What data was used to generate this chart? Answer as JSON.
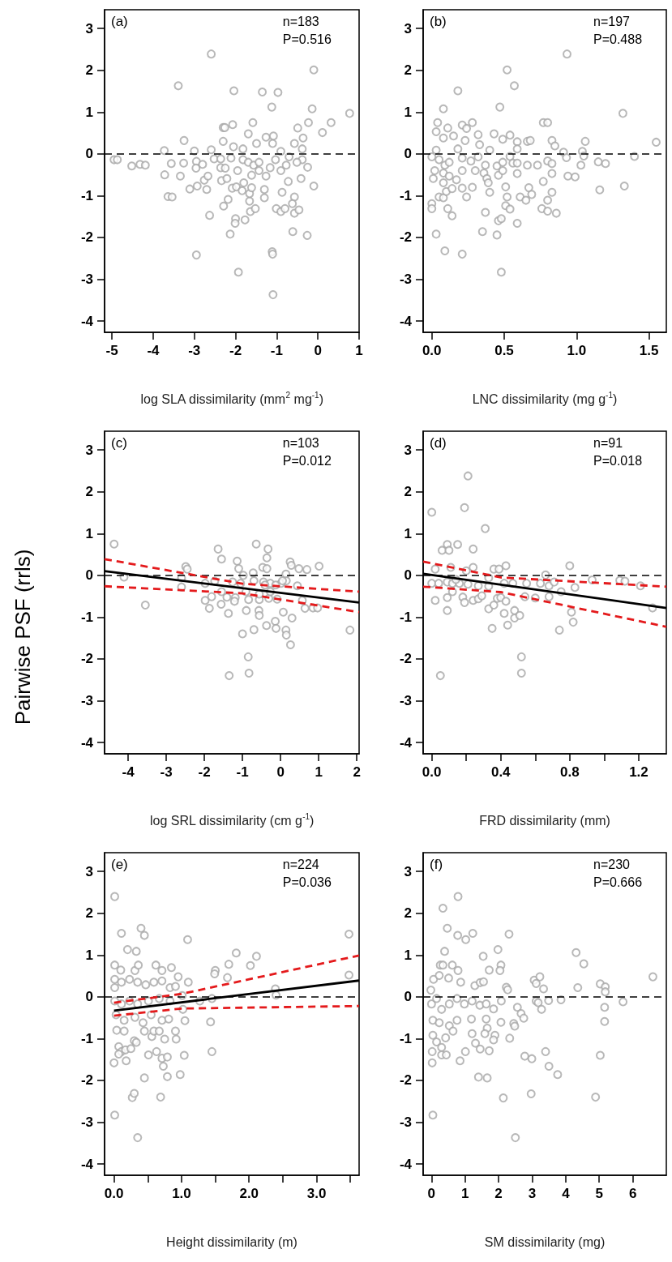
{
  "chart_data": [
    {
      "type": "scatter",
      "xlabel": "log SLA dissimilarity (mm$^{2}$ mg$^{-1}$)",
      "annotations": [
        "(a)",
        "n=183",
        "P=0.516"
      ],
      "marker": "circle",
      "xlim": [
        -5.18,
        1
      ],
      "xticks": [
        -5,
        -4,
        -3,
        -2,
        -1,
        0,
        1
      ],
      "ylim": [
        -4.27,
        3.45
      ],
      "yticks": [
        -4,
        -3,
        -2,
        -1,
        0,
        1,
        2,
        3
      ],
      "ref_lines": [
        {
          "axis": "y",
          "value": 0,
          "color": "#000000",
          "line_style": "dashed"
        }
      ],
      "series": [
        {
          "color": "#a6a6a6",
          "x": [
            -2.59,
            -0.1,
            -3.39,
            -2.04,
            -1.35,
            -0.97,
            -1.12,
            -0.14,
            0.77,
            0.32,
            -0.23,
            -1.58,
            0.11,
            -0.49,
            -2.07,
            -2.3,
            -2.26,
            -3.25,
            -3.73,
            -3.0,
            -2.59,
            -2.3,
            -2.05,
            -1.69,
            -1.26,
            -1.08,
            -0.36,
            -0.57,
            -1.49,
            -4.95,
            -4.87,
            -4.52,
            -4.32,
            -4.19,
            -3.56,
            -3.26,
            -3.72,
            -3.34,
            -3.64,
            -3.54,
            -3.11,
            -2.93,
            -2.95,
            -2.96,
            -2.8,
            -2.7,
            -2.76,
            -2.67,
            -2.52,
            -2.36,
            -2.36,
            -2.25,
            -2.34,
            -2.21,
            -2.11,
            -2.29,
            -2.18,
            -2.63,
            -2.08,
            -1.98,
            -1.84,
            -2.0,
            -2.01,
            -2.13,
            -1.77,
            -2.95,
            -1.93,
            -1.64,
            -1.52,
            -1.66,
            -1.66,
            -1.61,
            -1.8,
            -1.95,
            -1.82,
            -1.69,
            -1.56,
            -1.43,
            -1.61,
            -1.43,
            -1.3,
            -1.26,
            -1.3,
            -1.16,
            -1.11,
            -1.1,
            -1.09,
            -1.03,
            -0.9,
            -0.87,
            -1.01,
            -0.9,
            -0.8,
            -0.72,
            -0.57,
            -0.62,
            -0.57,
            -0.46,
            -0.61,
            -0.26,
            -0.1,
            -0.25,
            -0.41,
            -0.38,
            -0.51,
            -0.7,
            -0.77,
            -0.9,
            -0.38,
            -1.1,
            -1.82
          ],
          "values": [
            2.39,
            2.01,
            1.63,
            1.51,
            1.48,
            1.47,
            1.12,
            1.08,
            0.97,
            0.75,
            0.75,
            0.75,
            0.51,
            0.62,
            0.7,
            0.63,
            0.63,
            0.32,
            0.08,
            0.07,
            0.1,
            0.3,
            0.17,
            0.48,
            0.4,
            0.43,
            0.38,
            0.25,
            0.25,
            -0.14,
            -0.14,
            -0.29,
            -0.25,
            -0.27,
            -0.23,
            -0.22,
            -0.5,
            -0.53,
            -1.02,
            -1.03,
            -0.84,
            -0.77,
            -0.18,
            -0.34,
            -0.25,
            -0.85,
            -0.63,
            -0.53,
            -0.12,
            -0.12,
            -0.33,
            -0.34,
            -0.64,
            -0.59,
            -0.1,
            -1.25,
            -1.09,
            -1.47,
            -0.82,
            -0.79,
            -0.88,
            -1.55,
            -1.66,
            -1.92,
            -1.58,
            -2.42,
            -2.83,
            -1.38,
            -1.31,
            -1.13,
            -0.95,
            -0.81,
            -0.69,
            -0.4,
            -0.14,
            -0.2,
            -0.27,
            -0.2,
            -0.51,
            -0.4,
            -0.85,
            -0.53,
            -1.05,
            -0.33,
            -2.34,
            -2.4,
            -3.37,
            -0.14,
            -0.4,
            -0.92,
            -1.31,
            -1.38,
            -1.31,
            -0.66,
            -1.03,
            -1.19,
            -1.42,
            -1.34,
            -1.86,
            -1.95,
            -0.77,
            -0.32,
            -0.59,
            -0.14,
            -0.2,
            -0.07,
            -0.27,
            0.06,
            0.12,
            0.25,
            0.12
          ]
        }
      ]
    },
    {
      "type": "scatter",
      "xlabel": "LNC dissimilarity (mg g$^{-1}$)",
      "annotations": [
        "(b)",
        "n=197",
        "P=0.488"
      ],
      "marker": "circle",
      "xlim": [
        -0.06,
        1.62
      ],
      "xticks": [
        {
          "value": 0,
          "label": "0.0"
        },
        0.5,
        {
          "value": 1,
          "label": "1.0"
        },
        1.5
      ],
      "ylim": [
        -4.27,
        3.45
      ],
      "yticks": [
        -4,
        -3,
        -2,
        -1,
        0,
        1,
        2,
        3
      ],
      "ref_lines": [
        {
          "axis": "y",
          "value": 0,
          "color": "#000000",
          "line_style": "dashed"
        }
      ],
      "series": [
        {
          "color": "#a6a6a6",
          "x": [
            0.934,
            0.52,
            0.57,
            0.18,
            0.47,
            0.08,
            1.32,
            0.04,
            0.03,
            0.11,
            0.21,
            0.28,
            0.24,
            0.77,
            0.8,
            0.43,
            0.54,
            0.49,
            0.15,
            0.08,
            0.32,
            0.23,
            0.33,
            0.59,
            0.66,
            0.68,
            0.83,
            1.06,
            1.55,
            0.03,
            0.18,
            0.4,
            0.59,
            0.85,
            0.91,
            1.04,
            0.0,
            0.05,
            0.09,
            0.12,
            0.21,
            0.27,
            0.32,
            0.37,
            0.45,
            0.49,
            0.54,
            0.56,
            0.59,
            0.66,
            0.73,
            0.8,
            0.83,
            0.93,
            1.05,
            1.03,
            1.15,
            1.2,
            1.4,
            0.01,
            0.02,
            0.08,
            0.12,
            0.0,
            0.0,
            0.05,
            0.08,
            0.03,
            0.09,
            0.21,
            0.11,
            0.14,
            0.1,
            0.08,
            0.17,
            0.14,
            0.21,
            0.21,
            0.28,
            0.24,
            0.3,
            0.36,
            0.38,
            0.4,
            0.39,
            0.46,
            0.49,
            0.37,
            0.35,
            0.45,
            0.46,
            0.48,
            0.48,
            0.51,
            0.52,
            0.51,
            0.54,
            0.59,
            0.59,
            0.61,
            0.65,
            0.67,
            0.69,
            0.77,
            0.76,
            0.8,
            0.8,
            0.83,
            0.83,
            0.86,
            0.94,
            0.99,
            1.16,
            1.33
          ],
          "values": [
            2.39,
            2.01,
            1.63,
            1.51,
            1.12,
            1.08,
            0.97,
            0.75,
            0.53,
            0.62,
            0.69,
            0.75,
            0.61,
            0.75,
            0.75,
            0.48,
            0.45,
            0.35,
            0.43,
            0.38,
            0.46,
            0.32,
            0.22,
            0.29,
            0.3,
            0.32,
            0.32,
            0.3,
            0.28,
            0.09,
            0.12,
            0.09,
            0.12,
            0.19,
            0.04,
            0.06,
            -0.07,
            -0.14,
            -0.27,
            -0.2,
            -0.1,
            -0.17,
            -0.07,
            -0.27,
            -0.29,
            -0.2,
            -0.06,
            -0.22,
            -0.22,
            -0.27,
            -0.27,
            -0.17,
            -0.23,
            -0.09,
            -0.05,
            -0.27,
            -0.19,
            -0.23,
            -0.06,
            -0.59,
            -0.4,
            -0.46,
            -0.53,
            -1.19,
            -1.31,
            -1.03,
            -1.05,
            -1.92,
            -2.32,
            -2.4,
            -1.31,
            -1.48,
            -0.9,
            -0.69,
            -0.62,
            -0.83,
            -0.4,
            -0.82,
            -0.8,
            -1.03,
            -0.4,
            -0.46,
            -0.59,
            -0.92,
            -0.69,
            -0.51,
            -0.4,
            -1.4,
            -1.86,
            -1.94,
            -1.6,
            -1.55,
            -2.83,
            -0.79,
            -1.03,
            -1.24,
            -1.32,
            -0.47,
            -1.66,
            -1.03,
            -1.11,
            -0.81,
            -0.97,
            -0.66,
            -1.31,
            -1.37,
            -1.11,
            -0.47,
            -0.92,
            -1.42,
            -0.53,
            -0.55,
            -0.86,
            -0.77
          ]
        }
      ]
    },
    {
      "type": "scatter",
      "xlabel": "log SRL dissimilarity (cm g$^{-1}$)",
      "ylabel": "Pairwise PSF (rrls)",
      "annotations": [
        "(c)",
        "n=103",
        "P=0.012"
      ],
      "marker": "circle",
      "xlim": [
        -4.62,
        2.06
      ],
      "xticks": [
        -4,
        -3,
        -2,
        -1,
        0,
        1,
        2
      ],
      "ylim": [
        -4.27,
        3.45
      ],
      "yticks": [
        -4,
        -3,
        -2,
        -1,
        0,
        1,
        2,
        3
      ],
      "ref_lines": [
        {
          "axis": "y",
          "value": 0,
          "color": "#000000",
          "line_style": "dashed"
        }
      ],
      "series": [
        {
          "color": "#a6a6a6",
          "x": [
            -4.37,
            -4.11,
            -3.55,
            -2.49,
            -2.45,
            -2.6,
            -2.6,
            -1.98,
            -1.98,
            -1.87,
            -1.81,
            -1.73,
            -1.64,
            -1.55,
            -1.56,
            -1.41,
            -1.37,
            -1.35,
            -1.19,
            -1.21,
            -1.14,
            -1.1,
            -1.05,
            -1.0,
            -0.9,
            -0.85,
            -0.83,
            -0.84,
            -0.91,
            -0.72,
            -0.7,
            -0.64,
            -0.57,
            -0.56,
            -0.56,
            -0.47,
            -0.45,
            -0.36,
            -0.36,
            -0.33,
            -0.37,
            -0.31,
            -0.27,
            -0.14,
            -0.12,
            -0.09,
            0.01,
            0.07,
            0.14,
            0.15,
            0.14,
            0.15,
            0.25,
            0.28,
            0.3,
            0.26,
            0.44,
            0.48,
            0.57,
            0.69,
            0.64,
            0.85,
            0.97,
            1.01,
            1.82,
            -0.98,
            -0.7,
            -0.41,
            -0.13,
            0.05,
            -1.26,
            -1.55,
            -0.56,
            -0.27
          ],
          "values": [
            0.75,
            -0.04,
            -0.71,
            0.21,
            0.15,
            -0.06,
            -0.28,
            -0.19,
            -0.6,
            -0.79,
            -0.51,
            -0.14,
            0.63,
            0.39,
            -0.69,
            -0.52,
            -0.91,
            -2.4,
            -0.53,
            -0.62,
            0.34,
            0.16,
            -0.19,
            -1.4,
            -0.84,
            -1.95,
            -2.34,
            -0.58,
            -0.39,
            0.06,
            -1.3,
            0.75,
            -0.84,
            -0.96,
            -0.58,
            0.19,
            -0.16,
            0.16,
            0.42,
            0.63,
            -1.2,
            -0.55,
            -0.19,
            -1.1,
            -1.27,
            -0.57,
            -0.19,
            -0.88,
            0.03,
            -0.13,
            -1.31,
            -1.43,
            0.32,
            0.24,
            -1.02,
            -1.66,
            -0.25,
            0.16,
            -0.6,
            0.14,
            -0.79,
            -0.78,
            -0.78,
            0.22,
            -1.31,
            0.0,
            -0.13,
            -0.23,
            -0.23,
            -0.13,
            -0.16,
            -0.39,
            -0.45,
            -0.39
          ]
        },
        {
          "type": "line",
          "color": "#000000",
          "marker": "none",
          "line_style": "solid",
          "x": [
            -4.62,
            2.06
          ],
          "values": [
            0.1,
            -0.65
          ]
        },
        {
          "type": "line",
          "color": "#e41a1c",
          "marker": "none",
          "line_style": "dashed",
          "x": [
            -4.62,
            -1,
            2.06
          ],
          "values": [
            0.39,
            -0.2,
            -0.39
          ]
        },
        {
          "type": "line",
          "color": "#e41a1c",
          "marker": "none",
          "line_style": "dashed",
          "x": [
            -4.62,
            -1,
            2.06
          ],
          "values": [
            -0.26,
            -0.43,
            -0.88
          ]
        }
      ]
    },
    {
      "type": "scatter",
      "xlabel": "FRD dissimilarity (mm)",
      "annotations": [
        "(d)",
        "n=91",
        "P=0.018"
      ],
      "marker": "circle",
      "xlim": [
        -0.05,
        1.36
      ],
      "xticks": [
        {
          "value": 0,
          "label": "0.0"
        },
        {
          "value": 0.2,
          "label": null
        },
        0.4,
        {
          "value": 0.6,
          "label": null
        },
        0.8,
        {
          "value": 1,
          "label": null
        },
        1.2
      ],
      "ylim": [
        -4.27,
        3.45
      ],
      "yticks": [
        -4,
        -3,
        -2,
        -1,
        0,
        1,
        2,
        3
      ],
      "ref_lines": [
        {
          "axis": "y",
          "value": 0,
          "color": "#000000",
          "line_style": "dashed"
        }
      ],
      "series": [
        {
          "color": "#a6a6a6",
          "x": [
            0.0,
            0.21,
            0.19,
            0.31,
            0.09,
            0.06,
            0.1,
            0.15,
            0.24,
            0.02,
            0.11,
            0.2,
            0.24,
            0.36,
            0.39,
            0.43,
            0.8,
            0.66,
            0.0,
            0.04,
            0.09,
            0.12,
            0.16,
            0.21,
            0.27,
            0.33,
            0.42,
            0.47,
            0.55,
            0.63,
            0.68,
            0.71,
            0.75,
            0.83,
            0.93,
            1.09,
            1.12,
            1.21,
            1.28,
            0.12,
            0.09,
            0.02,
            0.09,
            0.18,
            0.19,
            0.24,
            0.27,
            0.29,
            0.33,
            0.36,
            0.35,
            0.38,
            0.4,
            0.43,
            0.42,
            0.44,
            0.48,
            0.48,
            0.51,
            0.52,
            0.52,
            0.54,
            0.6,
            0.68,
            0.74,
            0.81,
            0.82,
            0.05,
            0.14,
            0.33
          ],
          "values": [
            1.51,
            2.38,
            1.62,
            1.12,
            0.74,
            0.6,
            0.6,
            0.74,
            0.63,
            0.15,
            0.19,
            0.11,
            0.19,
            0.15,
            0.15,
            0.23,
            0.23,
            0.01,
            -0.19,
            -0.19,
            -0.16,
            -0.19,
            -0.19,
            -0.21,
            -0.25,
            -0.26,
            -0.19,
            -0.19,
            -0.19,
            -0.19,
            -0.25,
            -0.16,
            -0.39,
            -0.29,
            -0.11,
            -0.12,
            -0.14,
            -0.25,
            -0.78,
            -0.39,
            -0.53,
            -0.6,
            -0.84,
            -0.52,
            -0.65,
            -0.6,
            -0.56,
            -0.49,
            -0.8,
            -0.71,
            -1.27,
            -0.55,
            -0.53,
            -0.62,
            -0.91,
            -1.19,
            -0.84,
            -1.02,
            -0.96,
            -1.95,
            -2.34,
            -0.51,
            -0.54,
            -0.51,
            -1.31,
            -0.88,
            -1.12,
            -2.4,
            -0.1,
            -0.06
          ]
        },
        {
          "type": "line",
          "color": "#000000",
          "marker": "none",
          "line_style": "solid",
          "x": [
            -0.05,
            1.36
          ],
          "values": [
            0.04,
            -0.78
          ]
        },
        {
          "type": "line",
          "color": "#e41a1c",
          "marker": "none",
          "line_style": "dashed",
          "x": [
            -0.05,
            0.4,
            1.36
          ],
          "values": [
            0.33,
            -0.05,
            -0.27
          ]
        },
        {
          "type": "line",
          "color": "#e41a1c",
          "marker": "none",
          "line_style": "dashed",
          "x": [
            -0.05,
            0.4,
            1.36
          ],
          "values": [
            -0.27,
            -0.4,
            -1.23
          ]
        }
      ]
    },
    {
      "type": "scatter",
      "xlabel": "Height dissimilarity (m)",
      "annotations": [
        "(e)",
        "n=224",
        "P=0.036"
      ],
      "marker": "circle",
      "xlim": [
        -0.14,
        3.63
      ],
      "xticks": [
        {
          "value": 0,
          "label": "0.0"
        },
        {
          "value": 0.5,
          "label": null
        },
        {
          "value": 1,
          "label": "1.0"
        },
        {
          "value": 1.5,
          "label": null
        },
        {
          "value": 2,
          "label": "2.0"
        },
        {
          "value": 2.5,
          "label": null
        },
        {
          "value": 3,
          "label": "3.0"
        },
        {
          "value": 3.5,
          "label": null
        }
      ],
      "ylim": [
        -4.27,
        3.45
      ],
      "yticks": [
        -4,
        -3,
        -2,
        -1,
        0,
        1,
        2,
        3
      ],
      "ref_lines": [
        {
          "axis": "y",
          "value": 0,
          "color": "#000000",
          "line_style": "dashed"
        }
      ],
      "series": [
        {
          "color": "#a6a6a6",
          "x": [
            0.01,
            0.11,
            0.4,
            0.45,
            1.09,
            3.48,
            3.48,
            0.2,
            0.33,
            0.01,
            0.1,
            0.31,
            0.36,
            0.62,
            0.71,
            0.85,
            0.95,
            1.1,
            1.5,
            1.49,
            1.7,
            1.81,
            1.68,
            2.02,
            2.11,
            2.39,
            2.4,
            0.01,
            0.01,
            0.11,
            0.23,
            0.35,
            0.47,
            0.59,
            0.71,
            0.83,
            0.91,
            0.01,
            0.11,
            0.23,
            0.35,
            0.51,
            0.67,
            0.83,
            1.01,
            1.27,
            1.45,
            0.03,
            0.15,
            0.31,
            0.43,
            0.55,
            0.71,
            0.81,
            1.02,
            1.05,
            1.43,
            0.04,
            0.15,
            0.3,
            0.33,
            0.45,
            0.56,
            0.59,
            0.67,
            0.75,
            0.91,
            0.92,
            0.07,
            0.11,
            0.17,
            0.25,
            0.07,
            0.18,
            0.0,
            0.51,
            0.63,
            0.71,
            0.79,
            0.73,
            1.04,
            1.45,
            0.45,
            0.79,
            0.98,
            0.27,
            0.3,
            0.69,
            0.01,
            0.35
          ],
          "values": [
            2.4,
            1.52,
            1.64,
            1.47,
            1.37,
            1.5,
            0.52,
            1.13,
            1.09,
            0.76,
            0.64,
            0.63,
            0.76,
            0.76,
            0.63,
            0.7,
            0.48,
            0.35,
            0.63,
            0.55,
            0.78,
            1.05,
            0.46,
            0.75,
            0.97,
            0.19,
            0.04,
            0.42,
            0.22,
            0.35,
            0.42,
            0.35,
            0.29,
            0.35,
            0.38,
            0.22,
            0.25,
            -0.1,
            -0.17,
            -0.1,
            -0.17,
            -0.1,
            -0.04,
            -0.1,
            0.03,
            -0.1,
            -0.04,
            -0.43,
            -0.56,
            -0.49,
            -0.62,
            -0.43,
            -0.56,
            -0.53,
            -0.3,
            -0.57,
            -0.6,
            -0.8,
            -0.82,
            -1.05,
            -1.09,
            -0.82,
            -0.95,
            -0.82,
            -0.82,
            -1.01,
            -0.82,
            -1.01,
            -1.19,
            -1.31,
            -1.27,
            -1.24,
            -1.37,
            -1.53,
            -1.58,
            -1.39,
            -1.31,
            -1.47,
            -1.44,
            -1.66,
            -1.4,
            -1.31,
            -1.94,
            -1.91,
            -1.86,
            -2.41,
            -2.31,
            -2.4,
            -2.83,
            -3.37
          ]
        },
        {
          "type": "line",
          "color": "#000000",
          "marker": "none",
          "line_style": "solid",
          "x": [
            0,
            3.63
          ],
          "values": [
            -0.33,
            0.39
          ]
        },
        {
          "type": "line",
          "color": "#e41a1c",
          "marker": "none",
          "line_style": "dashed",
          "x": [
            0,
            1,
            3.63
          ],
          "values": [
            -0.14,
            0.07,
            0.99
          ]
        },
        {
          "type": "line",
          "color": "#e41a1c",
          "marker": "none",
          "line_style": "dashed",
          "x": [
            0,
            1,
            3.63
          ],
          "values": [
            -0.45,
            -0.28,
            -0.22
          ]
        }
      ]
    },
    {
      "type": "scatter",
      "xlabel": "SM dissimilarity (mg)",
      "annotations": [
        "(f)",
        "n=230",
        "P=0.666"
      ],
      "marker": "circle",
      "xlim": [
        -0.25,
        7
      ],
      "xticks": [
        0,
        1,
        2,
        3,
        4,
        5,
        6
      ],
      "ylim": [
        -4.27,
        3.45
      ],
      "yticks": [
        -4,
        -3,
        -2,
        -1,
        0,
        1,
        2,
        3
      ],
      "ref_lines": [
        {
          "axis": "y",
          "value": 0,
          "color": "#000000",
          "line_style": "dashed"
        }
      ],
      "series": [
        {
          "color": "#a6a6a6",
          "x": [
            0.79,
            0.34,
            0.47,
            0.78,
            1.02,
            1.23,
            2.31,
            0.39,
            1.54,
            1.98,
            2.07,
            4.31,
            4.54,
            6.6,
            0.26,
            0.34,
            0.62,
            0.79,
            1.72,
            2.04,
            0.06,
            0.23,
            0.51,
            0.87,
            1.29,
            1.45,
            1.55,
            2.23,
            2.27,
            3.06,
            3.23,
            3.12,
            3.34,
            4.36,
            5.03,
            5.18,
            5.18,
            -0.02,
            0.0,
            0.15,
            0.3,
            0.53,
            0.76,
            0.98,
            1.21,
            1.44,
            1.63,
            1.85,
            2.08,
            2.56,
            2.67,
            2.75,
            3.12,
            3.18,
            3.28,
            3.49,
            3.86,
            5.16,
            5.16,
            5.71,
            0.04,
            0.23,
            0.53,
            0.76,
            1.19,
            1.63,
            1.66,
            2.07,
            2.45,
            2.48,
            0.04,
            0.15,
            0.42,
            0.64,
            1.21,
            1.59,
            1.89,
            1.85,
            2.33,
            1.31,
            1.45,
            1.72,
            1.01,
            0.02,
            0.3,
            0.3,
            0.44,
            0.85,
            0.02,
            2.78,
            2.99,
            3.4,
            3.5,
            3.76,
            5.03,
            1.4,
            1.66,
            2.14,
            2.97,
            4.89,
            0.04,
            2.5
          ],
          "values": [
            2.4,
            2.12,
            1.64,
            1.47,
            1.37,
            1.52,
            1.5,
            1.09,
            0.97,
            1.13,
            0.76,
            1.06,
            0.79,
            0.48,
            0.76,
            0.76,
            0.76,
            0.63,
            0.64,
            0.63,
            0.42,
            0.51,
            0.45,
            0.35,
            0.27,
            0.34,
            0.36,
            0.23,
            0.17,
            0.4,
            0.48,
            0.32,
            0.19,
            0.22,
            0.31,
            0.24,
            0.12,
            0.16,
            -0.17,
            -0.04,
            -0.3,
            -0.17,
            -0.04,
            -0.17,
            -0.1,
            -0.2,
            -0.17,
            -0.29,
            -0.1,
            -0.25,
            -0.4,
            -0.51,
            -0.1,
            -0.14,
            -0.3,
            -0.09,
            -0.07,
            -0.25,
            -0.59,
            -0.12,
            -0.56,
            -0.62,
            -0.69,
            -0.56,
            -0.53,
            -0.53,
            -0.75,
            -0.61,
            -0.64,
            -0.7,
            -0.92,
            -1.08,
            -0.98,
            -0.82,
            -0.88,
            -0.88,
            -0.92,
            -1.03,
            -0.99,
            -1.11,
            -1.25,
            -1.29,
            -1.31,
            -1.31,
            -1.21,
            -1.39,
            -1.39,
            -1.53,
            -1.58,
            -1.42,
            -1.48,
            -1.31,
            -1.66,
            -1.86,
            -1.4,
            -1.92,
            -1.94,
            -2.42,
            -2.32,
            -2.4,
            -2.83,
            -3.37
          ]
        }
      ]
    }
  ]
}
